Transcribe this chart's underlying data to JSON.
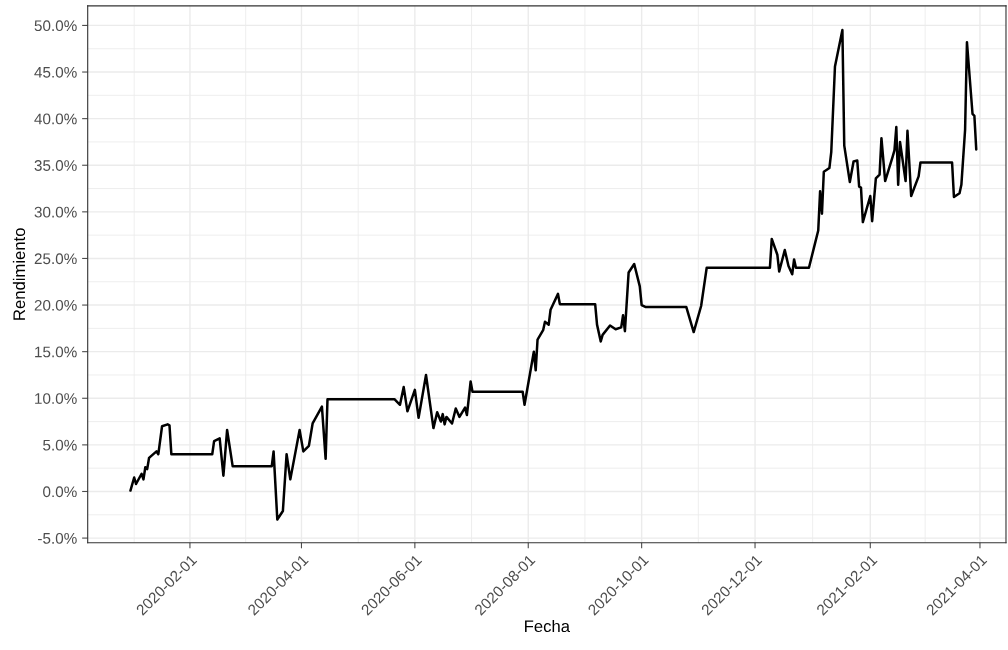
{
  "chart_data": {
    "type": "line",
    "xlabel": "Fecha",
    "ylabel": "Rendimiento",
    "x": [
      "2019-12-31",
      "2020-01-02",
      "2020-01-03",
      "2020-01-06",
      "2020-01-07",
      "2020-01-08",
      "2020-01-09",
      "2020-01-10",
      "2020-01-14",
      "2020-01-15",
      "2020-01-17",
      "2020-01-20",
      "2020-01-21",
      "2020-01-22",
      "2020-02-13",
      "2020-02-14",
      "2020-02-17",
      "2020-02-19",
      "2020-02-21",
      "2020-02-24",
      "2020-03-16",
      "2020-03-17",
      "2020-03-19",
      "2020-03-22",
      "2020-03-24",
      "2020-03-26",
      "2020-03-31",
      "2020-04-02",
      "2020-04-05",
      "2020-04-07",
      "2020-04-12",
      "2020-04-14",
      "2020-04-15",
      "2020-05-21",
      "2020-05-24",
      "2020-05-26",
      "2020-05-28",
      "2020-06-01",
      "2020-06-03",
      "2020-06-07",
      "2020-06-11",
      "2020-06-13",
      "2020-06-15",
      "2020-06-16",
      "2020-06-17",
      "2020-06-18",
      "2020-06-21",
      "2020-06-23",
      "2020-06-25",
      "2020-06-28",
      "2020-06-29",
      "2020-07-01",
      "2020-07-02",
      "2020-07-29",
      "2020-07-30",
      "2020-08-04",
      "2020-08-05",
      "2020-08-06",
      "2020-08-09",
      "2020-08-10",
      "2020-08-12",
      "2020-08-13",
      "2020-08-17",
      "2020-08-18",
      "2020-09-06",
      "2020-09-07",
      "2020-09-09",
      "2020-09-10",
      "2020-09-14",
      "2020-09-17",
      "2020-09-20",
      "2020-09-21",
      "2020-09-22",
      "2020-09-24",
      "2020-09-27",
      "2020-09-30",
      "2020-10-01",
      "2020-10-03",
      "2020-10-25",
      "2020-10-29",
      "2020-11-02",
      "2020-11-05",
      "2020-12-09",
      "2020-12-10",
      "2020-12-13",
      "2020-12-14",
      "2020-12-17",
      "2020-12-19",
      "2020-12-21",
      "2020-12-22",
      "2020-12-23",
      "2020-12-30",
      "2021-01-02",
      "2021-01-04",
      "2021-01-05",
      "2021-01-06",
      "2021-01-07",
      "2021-01-10",
      "2021-01-11",
      "2021-01-13",
      "2021-01-17",
      "2021-01-18",
      "2021-01-21",
      "2021-01-23",
      "2021-01-25",
      "2021-01-26",
      "2021-01-27",
      "2021-01-28",
      "2021-02-01",
      "2021-02-02",
      "2021-02-04",
      "2021-02-06",
      "2021-02-07",
      "2021-02-09",
      "2021-02-13",
      "2021-02-14",
      "2021-02-15",
      "2021-02-16",
      "2021-02-17",
      "2021-02-20",
      "2021-02-21",
      "2021-02-23",
      "2021-02-27",
      "2021-02-28",
      "2021-03-17",
      "2021-03-18",
      "2021-03-21",
      "2021-03-22",
      "2021-03-24",
      "2021-03-25",
      "2021-03-28",
      "2021-03-29",
      "2021-03-30"
    ],
    "series": [
      {
        "color": "#000000",
        "values": [
          0.1,
          1.5,
          0.8,
          1.9,
          1.3,
          2.6,
          2.4,
          3.6,
          4.3,
          4.0,
          7.0,
          7.2,
          7.1,
          4.0,
          4.0,
          5.4,
          5.7,
          1.7,
          6.6,
          2.7,
          2.7,
          4.3,
          -3.0,
          -2.1,
          4.0,
          1.3,
          6.6,
          4.3,
          4.9,
          7.3,
          9.1,
          3.5,
          9.9,
          9.9,
          9.3,
          11.2,
          8.6,
          10.9,
          7.9,
          12.5,
          6.8,
          8.5,
          7.5,
          8.3,
          7.2,
          8.0,
          7.3,
          8.9,
          8.0,
          9.0,
          8.2,
          11.8,
          10.7,
          10.7,
          9.3,
          15.0,
          13.0,
          16.3,
          17.3,
          18.2,
          17.9,
          19.5,
          21.2,
          20.1,
          20.1,
          17.9,
          16.1,
          16.8,
          17.8,
          17.4,
          17.6,
          18.9,
          17.2,
          23.5,
          24.4,
          22.0,
          20.0,
          19.8,
          19.8,
          17.1,
          19.9,
          24.0,
          24.0,
          27.1,
          25.4,
          23.6,
          25.9,
          24.2,
          23.3,
          24.9,
          24.0,
          24.0,
          26.4,
          28.0,
          32.2,
          29.8,
          34.3,
          34.7,
          36.4,
          45.6,
          49.5,
          37.1,
          33.2,
          35.4,
          35.5,
          32.7,
          32.6,
          28.9,
          31.7,
          29.0,
          33.6,
          34.0,
          37.9,
          33.3,
          35.9,
          36.6,
          39.1,
          32.9,
          37.5,
          33.3,
          38.7,
          31.7,
          33.8,
          35.3,
          35.3,
          31.6,
          32.0,
          32.9,
          38.8,
          48.2,
          40.5,
          40.3,
          36.7
        ]
      }
    ],
    "xlim": [
      "2019-12-08",
      "2021-04-15"
    ],
    "ylim": [
      -5.5,
      52.1
    ],
    "xticks": [
      "2020-02-01",
      "2020-04-01",
      "2020-06-01",
      "2020-08-01",
      "2020-10-01",
      "2020-12-01",
      "2021-02-01",
      "2021-04-01"
    ],
    "yticks": [
      {
        "value": -5,
        "label": "-5.0%"
      },
      {
        "value": 0,
        "label": "0.0%"
      },
      {
        "value": 5,
        "label": "5.0%"
      },
      {
        "value": 10,
        "label": "10.0%"
      },
      {
        "value": 15,
        "label": "15.0%"
      },
      {
        "value": 20,
        "label": "20.0%"
      },
      {
        "value": 25,
        "label": "25.0%"
      },
      {
        "value": 30,
        "label": "30.0%"
      },
      {
        "value": 35,
        "label": "35.0%"
      },
      {
        "value": 40,
        "label": "40.0%"
      },
      {
        "value": 45,
        "label": "45.0%"
      },
      {
        "value": 50,
        "label": "50.0%"
      }
    ],
    "grid": true
  }
}
